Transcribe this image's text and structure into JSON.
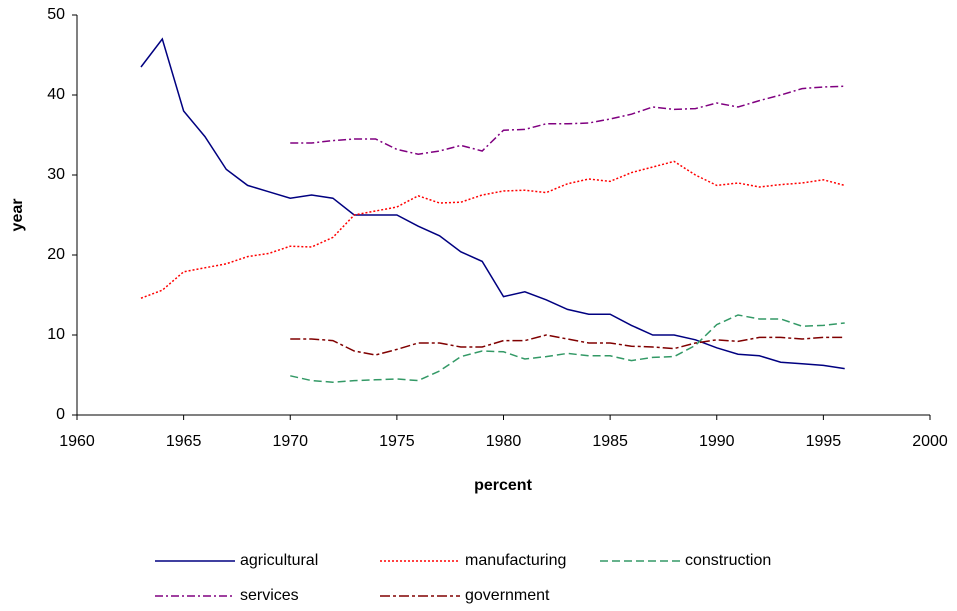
{
  "chart_data": {
    "type": "line",
    "xlabel": "percent",
    "ylabel": "year",
    "x": [
      1963,
      1964,
      1965,
      1966,
      1967,
      1968,
      1969,
      1970,
      1971,
      1972,
      1973,
      1974,
      1975,
      1976,
      1977,
      1978,
      1979,
      1980,
      1981,
      1982,
      1983,
      1984,
      1985,
      1986,
      1987,
      1988,
      1989,
      1990,
      1991,
      1992,
      1993,
      1994,
      1995,
      1996
    ],
    "series": [
      {
        "name": "agricultural",
        "color": "#000080",
        "dash": "none",
        "values": [
          43.5,
          47,
          38,
          34.8,
          30.7,
          28.7,
          27.9,
          27.1,
          27.5,
          27.1,
          25,
          25,
          25,
          23.6,
          22.4,
          20.4,
          19.2,
          14.8,
          15.4,
          14.4,
          13.2,
          12.6,
          12.6,
          11.2,
          10,
          10,
          9.4,
          8.4,
          7.6,
          7.4,
          6.6,
          6.4,
          6.2,
          5.8
        ]
      },
      {
        "name": "manufacturing",
        "color": "#ff0000",
        "dash": "2,2",
        "values": [
          14.6,
          15.6,
          17.9,
          18.4,
          18.9,
          19.8,
          20.2,
          21.1,
          21,
          22.2,
          25,
          25.5,
          26,
          27.4,
          26.5,
          26.6,
          27.5,
          28,
          28.1,
          27.8,
          28.9,
          29.5,
          29.2,
          30.3,
          31,
          31.7,
          30,
          28.7,
          29,
          28.5,
          28.8,
          29,
          29.4,
          28.7
        ]
      },
      {
        "name": "construction",
        "color": "#339966",
        "dash": "8,4",
        "values": [
          null,
          null,
          null,
          null,
          null,
          null,
          null,
          4.9,
          4.3,
          4.1,
          4.3,
          4.4,
          4.5,
          4.3,
          5.5,
          7.3,
          8,
          7.9,
          7,
          7.3,
          7.7,
          7.4,
          7.4,
          6.8,
          7.2,
          7.3,
          8.7,
          11.3,
          12.5,
          12,
          12,
          11.1,
          11.2,
          11.5
        ]
      },
      {
        "name": "services",
        "color": "#800080",
        "dash": "8,3,2,3",
        "values": [
          null,
          null,
          null,
          null,
          null,
          null,
          null,
          34,
          34,
          34.3,
          34.5,
          34.5,
          33.2,
          32.6,
          33,
          33.7,
          33,
          35.6,
          35.7,
          36.4,
          36.4,
          36.5,
          37,
          37.6,
          38.5,
          38.2,
          38.3,
          39,
          38.5,
          39.3,
          40,
          40.8,
          41,
          41.1
        ]
      },
      {
        "name": "government",
        "color": "#800000",
        "dash": "10,3,3,3",
        "values": [
          null,
          null,
          null,
          null,
          null,
          null,
          null,
          9.5,
          9.5,
          9.3,
          8,
          7.5,
          8.2,
          9,
          9,
          8.5,
          8.5,
          9.3,
          9.3,
          10,
          9.5,
          9,
          9,
          8.6,
          8.5,
          8.3,
          9,
          9.4,
          9.2,
          9.7,
          9.7,
          9.5,
          9.7,
          9.7
        ]
      }
    ],
    "xlim": [
      1960,
      2000
    ],
    "xticks": [
      1960,
      1965,
      1970,
      1975,
      1980,
      1985,
      1990,
      1995,
      2000
    ],
    "ylim": [
      0,
      50
    ],
    "yticks": [
      0,
      10,
      20,
      30,
      40,
      50
    ],
    "legend": "bottom"
  }
}
